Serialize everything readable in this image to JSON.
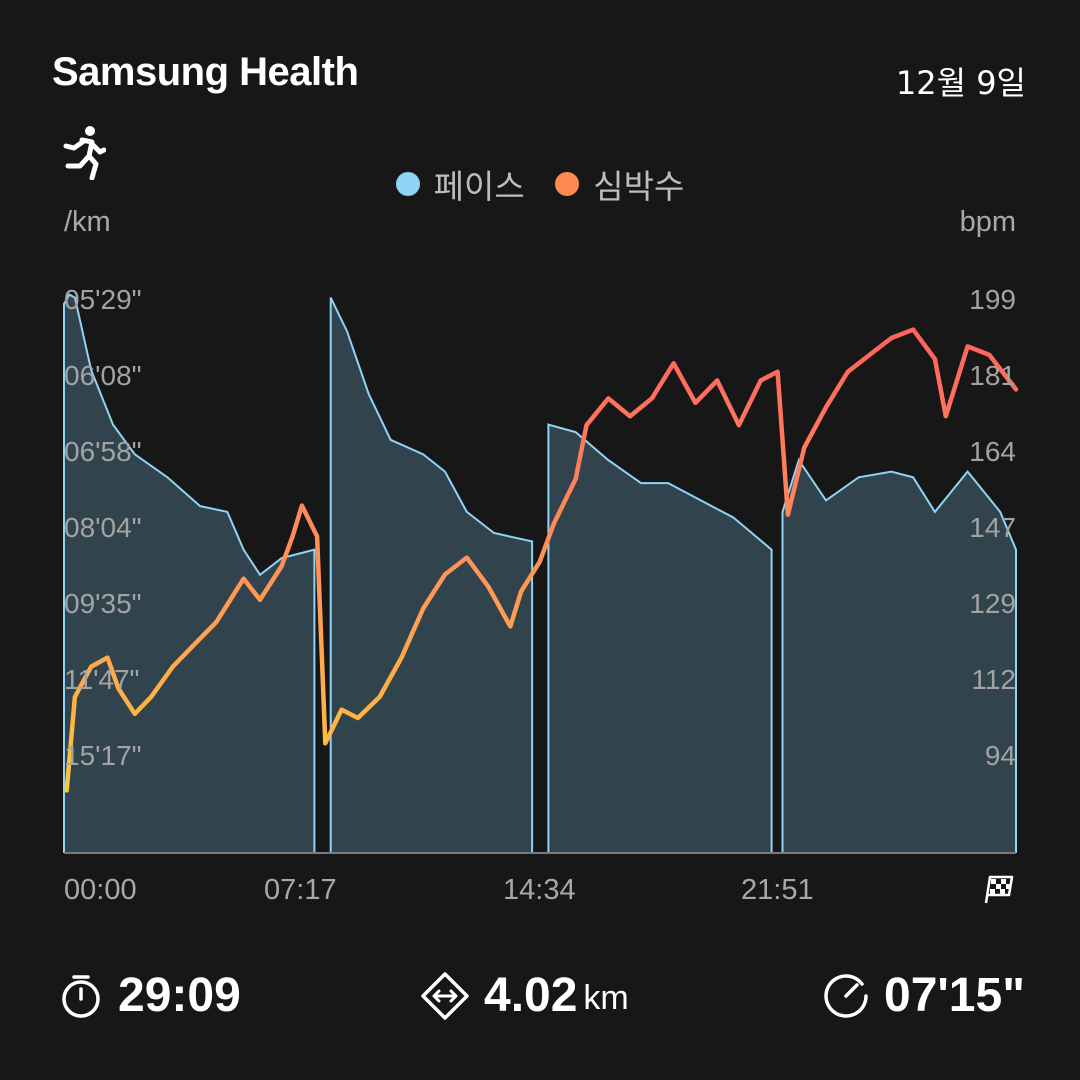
{
  "header": {
    "app_title": "Samsung Health",
    "date": "12월 9일"
  },
  "workout": {
    "icon": "running-person-icon"
  },
  "legend": {
    "pace_label": "페이스",
    "heart_label": "심박수",
    "pace_color": "#8fd3f7",
    "heart_color": "#ff8a55"
  },
  "axes": {
    "left_unit": "/km",
    "right_unit": "bpm",
    "left_ticks": [
      "05'29\"",
      "06'08\"",
      "06'58\"",
      "08'04\"",
      "09'35\"",
      "11'47\"",
      "15'17\""
    ],
    "right_ticks": [
      "199",
      "181",
      "164",
      "147",
      "129",
      "112",
      "94"
    ],
    "x_ticks": [
      "00:00",
      "07:17",
      "14:34",
      "21:51"
    ]
  },
  "chart_data": {
    "type": "area",
    "x_unit": "elapsed time (mm:ss)",
    "series": [
      {
        "name": "페이스",
        "kind": "area",
        "axis": "left",
        "color": "#8fd3f7",
        "points": [
          [
            "00:00",
            "05'31\""
          ],
          [
            "00:10",
            "05'20\""
          ],
          [
            "00:20",
            "05'25\""
          ],
          [
            "00:50",
            "06'05\""
          ],
          [
            "01:30",
            "06'40\""
          ],
          [
            "02:10",
            "07'00\""
          ],
          [
            "03:10",
            "07'20\""
          ],
          [
            "04:10",
            "07'45\""
          ],
          [
            "05:00",
            "07'50\""
          ],
          [
            "05:30",
            "08'30\""
          ],
          [
            "06:00",
            "09'00\""
          ],
          [
            "06:40",
            "08'40\""
          ],
          [
            "07:10",
            "08'35\""
          ],
          [
            "07:40",
            "08'30\""
          ],
          [
            "07:55",
            "—"
          ],
          [
            "08:10",
            "05'25\""
          ],
          [
            "08:40",
            "05'45\""
          ],
          [
            "09:20",
            "06'20\""
          ],
          [
            "10:00",
            "06'50\""
          ],
          [
            "11:00",
            "07'00\""
          ],
          [
            "11:40",
            "07'15\""
          ],
          [
            "12:20",
            "07'50\""
          ],
          [
            "13:10",
            "08'10\""
          ],
          [
            "14:20",
            "08'20\""
          ],
          [
            "14:35",
            "—"
          ],
          [
            "14:50",
            "06'40\""
          ],
          [
            "15:40",
            "06'45\""
          ],
          [
            "16:40",
            "07'05\""
          ],
          [
            "17:40",
            "07'25\""
          ],
          [
            "18:30",
            "07'25\""
          ],
          [
            "19:30",
            "07'40\""
          ],
          [
            "20:30",
            "07'55\""
          ],
          [
            "21:40",
            "08'30\""
          ],
          [
            "21:51",
            "—"
          ],
          [
            "22:00",
            "07'50\""
          ],
          [
            "22:30",
            "07'05\""
          ],
          [
            "23:20",
            "07'40\""
          ],
          [
            "24:20",
            "07'20\""
          ],
          [
            "25:20",
            "07'15\""
          ],
          [
            "26:00",
            "07'20\""
          ],
          [
            "26:40",
            "07'50\""
          ],
          [
            "27:40",
            "07'15\""
          ],
          [
            "28:40",
            "07'50\""
          ],
          [
            "29:09",
            "08'30\""
          ]
        ]
      },
      {
        "name": "심박수",
        "kind": "line",
        "axis": "right",
        "color_scale": [
          "#ffcc33",
          "#ff9955",
          "#ff6060"
        ],
        "points": [
          [
            "00:05",
            86
          ],
          [
            "00:20",
            108
          ],
          [
            "00:50",
            115
          ],
          [
            "01:20",
            117
          ],
          [
            "01:40",
            110
          ],
          [
            "02:10",
            104
          ],
          [
            "02:40",
            108
          ],
          [
            "03:20",
            115
          ],
          [
            "04:00",
            120
          ],
          [
            "04:40",
            125
          ],
          [
            "05:30",
            135
          ],
          [
            "06:00",
            130
          ],
          [
            "06:40",
            138
          ],
          [
            "07:00",
            145
          ],
          [
            "07:17",
            152
          ],
          [
            "07:45",
            145
          ],
          [
            "08:00",
            97
          ],
          [
            "08:30",
            105
          ],
          [
            "09:00",
            103
          ],
          [
            "09:40",
            108
          ],
          [
            "10:20",
            117
          ],
          [
            "11:00",
            128
          ],
          [
            "11:40",
            136
          ],
          [
            "12:20",
            140
          ],
          [
            "13:00",
            133
          ],
          [
            "13:40",
            124
          ],
          [
            "14:00",
            132
          ],
          [
            "14:34",
            139
          ],
          [
            "15:00",
            148
          ],
          [
            "15:40",
            158
          ],
          [
            "16:00",
            170
          ],
          [
            "16:40",
            176
          ],
          [
            "17:20",
            172
          ],
          [
            "18:00",
            176
          ],
          [
            "18:40",
            184
          ],
          [
            "19:20",
            175
          ],
          [
            "20:00",
            180
          ],
          [
            "20:40",
            170
          ],
          [
            "21:20",
            180
          ],
          [
            "21:51",
            182
          ],
          [
            "22:10",
            150
          ],
          [
            "22:40",
            165
          ],
          [
            "23:20",
            174
          ],
          [
            "24:00",
            182
          ],
          [
            "24:40",
            186
          ],
          [
            "25:20",
            190
          ],
          [
            "26:00",
            192
          ],
          [
            "26:40",
            185
          ],
          [
            "27:00",
            172
          ],
          [
            "27:40",
            188
          ],
          [
            "28:20",
            186
          ],
          [
            "29:09",
            178
          ]
        ]
      }
    ]
  },
  "summary": {
    "duration": {
      "icon": "stopwatch-icon",
      "value": "29:09"
    },
    "distance": {
      "icon": "distance-arrows-icon",
      "value": "4.02",
      "unit": "km"
    },
    "avg_pace": {
      "icon": "speed-gauge-icon",
      "value": "07'15\""
    }
  }
}
